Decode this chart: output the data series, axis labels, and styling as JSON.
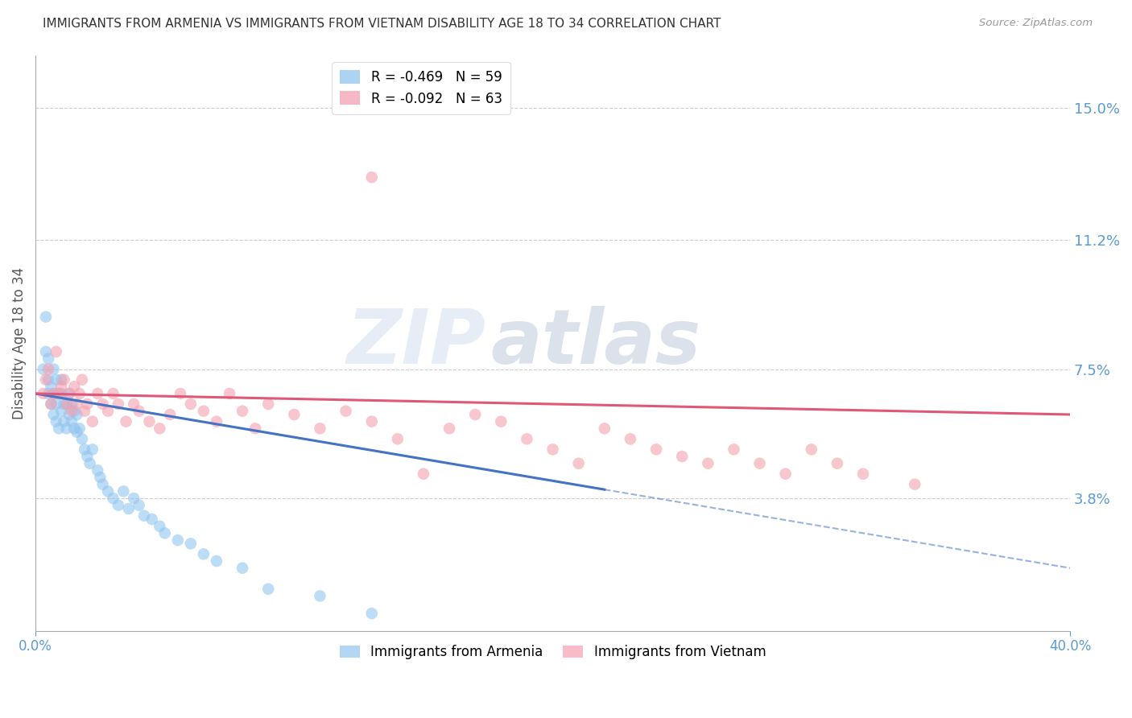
{
  "title": "IMMIGRANTS FROM ARMENIA VS IMMIGRANTS FROM VIETNAM DISABILITY AGE 18 TO 34 CORRELATION CHART",
  "source": "Source: ZipAtlas.com",
  "ylabel": "Disability Age 18 to 34",
  "ytick_labels": [
    "3.8%",
    "7.5%",
    "11.2%",
    "15.0%"
  ],
  "ytick_values": [
    0.038,
    0.075,
    0.112,
    0.15
  ],
  "xlim": [
    0.0,
    0.4
  ],
  "ylim": [
    0.0,
    0.165
  ],
  "legend_entries": [
    {
      "label": "R = -0.469   N = 59",
      "color": "#92C5F0"
    },
    {
      "label": "R = -0.092   N = 63",
      "color": "#F4A0B0"
    }
  ],
  "series_armenia": {
    "color": "#92C5F0",
    "line_color": "#4472C4",
    "x": [
      0.003,
      0.004,
      0.004,
      0.005,
      0.005,
      0.005,
      0.006,
      0.006,
      0.007,
      0.007,
      0.007,
      0.008,
      0.008,
      0.008,
      0.009,
      0.009,
      0.01,
      0.01,
      0.01,
      0.011,
      0.011,
      0.012,
      0.012,
      0.013,
      0.013,
      0.014,
      0.014,
      0.015,
      0.015,
      0.016,
      0.016,
      0.017,
      0.018,
      0.019,
      0.02,
      0.021,
      0.022,
      0.024,
      0.025,
      0.026,
      0.028,
      0.03,
      0.032,
      0.034,
      0.036,
      0.038,
      0.04,
      0.042,
      0.045,
      0.048,
      0.05,
      0.055,
      0.06,
      0.065,
      0.07,
      0.08,
      0.09,
      0.11,
      0.13
    ],
    "y": [
      0.075,
      0.08,
      0.09,
      0.068,
      0.072,
      0.078,
      0.065,
      0.07,
      0.062,
      0.068,
      0.075,
      0.06,
      0.065,
      0.072,
      0.058,
      0.068,
      0.063,
      0.068,
      0.072,
      0.06,
      0.065,
      0.058,
      0.065,
      0.062,
      0.068,
      0.06,
      0.065,
      0.058,
      0.063,
      0.057,
      0.062,
      0.058,
      0.055,
      0.052,
      0.05,
      0.048,
      0.052,
      0.046,
      0.044,
      0.042,
      0.04,
      0.038,
      0.036,
      0.04,
      0.035,
      0.038,
      0.036,
      0.033,
      0.032,
      0.03,
      0.028,
      0.026,
      0.025,
      0.022,
      0.02,
      0.018,
      0.012,
      0.01,
      0.005
    ]
  },
  "series_vietnam": {
    "color": "#F4A0B0",
    "line_color": "#E05878",
    "x": [
      0.003,
      0.004,
      0.005,
      0.006,
      0.007,
      0.008,
      0.009,
      0.01,
      0.011,
      0.012,
      0.013,
      0.014,
      0.015,
      0.016,
      0.017,
      0.018,
      0.019,
      0.02,
      0.022,
      0.024,
      0.026,
      0.028,
      0.03,
      0.032,
      0.035,
      0.038,
      0.04,
      0.044,
      0.048,
      0.052,
      0.056,
      0.06,
      0.065,
      0.07,
      0.075,
      0.08,
      0.085,
      0.09,
      0.1,
      0.11,
      0.12,
      0.13,
      0.14,
      0.15,
      0.16,
      0.17,
      0.18,
      0.19,
      0.2,
      0.21,
      0.22,
      0.23,
      0.24,
      0.25,
      0.26,
      0.27,
      0.28,
      0.29,
      0.3,
      0.31,
      0.32,
      0.34,
      0.13
    ],
    "y": [
      0.068,
      0.072,
      0.075,
      0.065,
      0.068,
      0.08,
      0.068,
      0.07,
      0.072,
      0.065,
      0.068,
      0.063,
      0.07,
      0.065,
      0.068,
      0.072,
      0.063,
      0.065,
      0.06,
      0.068,
      0.065,
      0.063,
      0.068,
      0.065,
      0.06,
      0.065,
      0.063,
      0.06,
      0.058,
      0.062,
      0.068,
      0.065,
      0.063,
      0.06,
      0.068,
      0.063,
      0.058,
      0.065,
      0.062,
      0.058,
      0.063,
      0.06,
      0.055,
      0.045,
      0.058,
      0.062,
      0.06,
      0.055,
      0.052,
      0.048,
      0.058,
      0.055,
      0.052,
      0.05,
      0.048,
      0.052,
      0.048,
      0.045,
      0.052,
      0.048,
      0.045,
      0.042,
      0.13
    ]
  },
  "arm_line_solid_end": 0.22,
  "arm_line": {
    "x0": 0.0,
    "x1": 0.4,
    "y0": 0.068,
    "y1": 0.018
  },
  "viet_line": {
    "x0": 0.0,
    "x1": 0.4,
    "y0": 0.068,
    "y1": 0.062
  },
  "background_color": "#FFFFFF",
  "grid_color": "#CCCCCC",
  "axis_color": "#AAAAAA",
  "title_color": "#333333",
  "tick_color": "#5B9BD5",
  "watermark_zip": "ZIP",
  "watermark_atlas": "atlas",
  "bottom_legend": [
    {
      "label": "Immigrants from Armenia",
      "color": "#92C5F0"
    },
    {
      "label": "Immigrants from Vietnam",
      "color": "#F4A0B0"
    }
  ]
}
